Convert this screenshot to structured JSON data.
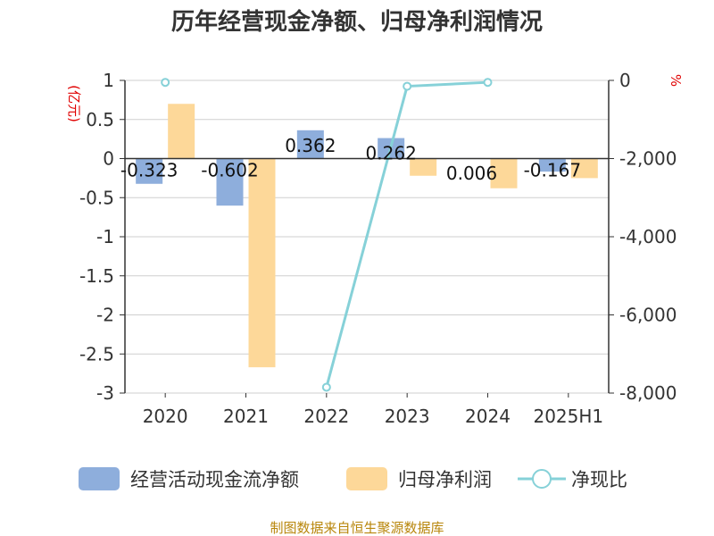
{
  "title": "历年经营现金净额、归母净利润情况",
  "footer": "制图数据来自恒生聚源数据库",
  "chart_data": {
    "type": "bar",
    "title": "历年经营现金净额、归母净利润情况",
    "categories": [
      "2020",
      "2021",
      "2022",
      "2023",
      "2024",
      "2025H1"
    ],
    "y_left": {
      "unit": "(亿元)",
      "ylim": [
        -3,
        1
      ],
      "ticks": [
        "1",
        "0.5",
        "0",
        "-0.5",
        "-1",
        "-1.5",
        "-2",
        "-2.5",
        "-3"
      ],
      "tick_values": [
        1,
        0.5,
        0,
        -0.5,
        -1,
        -1.5,
        -2,
        -2.5,
        -3
      ]
    },
    "y_right": {
      "unit": "%",
      "ylim": [
        -8000,
        0
      ],
      "ticks": [
        "0",
        "-2,000",
        "-4,000",
        "-6,000",
        "-8,000"
      ],
      "tick_values": [
        0,
        -2000,
        -4000,
        -6000,
        -8000
      ]
    },
    "grid": true,
    "legend_position": "bottom",
    "series": [
      {
        "name": "经营活动现金流净额",
        "type": "bar",
        "axis": "left",
        "color": "#8eaedc",
        "values": [
          -0.323,
          -0.602,
          0.362,
          0.262,
          0.006,
          -0.167
        ],
        "labels": [
          "-0.323",
          "-0.602",
          "0.362",
          "0.262",
          "0.006",
          "-0.167"
        ]
      },
      {
        "name": "归母净利润",
        "type": "bar",
        "axis": "left",
        "color": "#fdd899",
        "values": [
          0.7,
          -2.67,
          null,
          -0.22,
          -0.38,
          -0.25
        ]
      },
      {
        "name": "净现比",
        "type": "line",
        "axis": "right",
        "color": "#86d1d8",
        "values": [
          -50,
          null,
          -7850,
          -150,
          -50,
          null
        ]
      }
    ]
  }
}
